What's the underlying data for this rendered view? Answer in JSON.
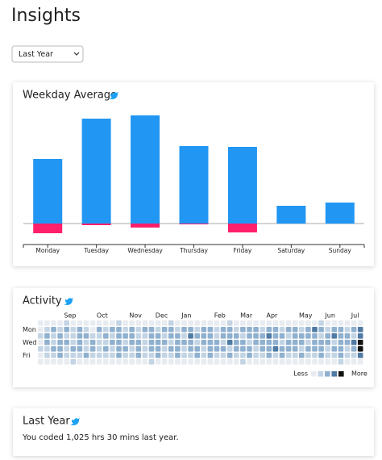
{
  "page_title": "Insights",
  "range_select": {
    "selected": "Last Year"
  },
  "chart_data": {
    "type": "bar",
    "title": "Weekday Average",
    "categories": [
      "Monday",
      "Tuesday",
      "Wednesday",
      "Thursday",
      "Friday",
      "Saturday",
      "Sunday"
    ],
    "series": [
      {
        "color": "#2196f3",
        "values": [
          80,
          130,
          134,
          96,
          95,
          22,
          26
        ]
      },
      {
        "color": "#ff1f6b",
        "values": [
          -12,
          -2,
          -5,
          -1,
          -11,
          0,
          0
        ]
      }
    ]
  },
  "activity": {
    "title": "Activity",
    "months": [
      {
        "label": "Sep",
        "week": 4
      },
      {
        "label": "Oct",
        "week": 9
      },
      {
        "label": "Nov",
        "week": 14
      },
      {
        "label": "Dec",
        "week": 18
      },
      {
        "label": "Jan",
        "week": 22
      },
      {
        "label": "Feb",
        "week": 27
      },
      {
        "label": "Mar",
        "week": 31
      },
      {
        "label": "Apr",
        "week": 35
      },
      {
        "label": "May",
        "week": 40
      },
      {
        "label": "Jun",
        "week": 44
      },
      {
        "label": "Jul",
        "week": 48
      }
    ],
    "day_labels": [
      {
        "label": "Mon",
        "row": 1
      },
      {
        "label": "Wed",
        "row": 3
      },
      {
        "label": "Fri",
        "row": 5
      }
    ],
    "level_colors": [
      "#e8ecf1",
      "#c3d4e4",
      "#8fb0cf",
      "#4f7aa3",
      "#111111"
    ],
    "legend_less": "Less",
    "legend_more": "More",
    "rows": [
      [
        0,
        0,
        0,
        0,
        1,
        0,
        0,
        0,
        0,
        0,
        0,
        0,
        1,
        0,
        0,
        0,
        0,
        0,
        0,
        0,
        1,
        0,
        0,
        0,
        0,
        0,
        0,
        0,
        0,
        1,
        0,
        0,
        0,
        0,
        0,
        0,
        0,
        0,
        0,
        0,
        0,
        0,
        0,
        1,
        0,
        0,
        0,
        0,
        0,
        0
      ],
      [
        0,
        1,
        2,
        1,
        2,
        1,
        2,
        1,
        0,
        2,
        1,
        2,
        2,
        1,
        2,
        1,
        2,
        2,
        1,
        2,
        2,
        1,
        2,
        2,
        1,
        2,
        2,
        1,
        2,
        2,
        1,
        2,
        2,
        2,
        1,
        2,
        2,
        1,
        2,
        2,
        1,
        2,
        3,
        2,
        1,
        2,
        2,
        1,
        2,
        3
      ],
      [
        1,
        2,
        1,
        2,
        1,
        1,
        2,
        2,
        1,
        1,
        2,
        1,
        2,
        2,
        2,
        1,
        1,
        2,
        2,
        1,
        2,
        2,
        1,
        3,
        2,
        2,
        2,
        1,
        2,
        2,
        2,
        1,
        2,
        2,
        2,
        3,
        2,
        2,
        1,
        2,
        2,
        2,
        2,
        1,
        2,
        3,
        2,
        2,
        1,
        3
      ],
      [
        0,
        2,
        1,
        2,
        2,
        1,
        2,
        1,
        2,
        1,
        1,
        2,
        2,
        1,
        2,
        2,
        1,
        2,
        2,
        2,
        1,
        2,
        2,
        2,
        1,
        2,
        2,
        2,
        1,
        3,
        2,
        2,
        1,
        2,
        2,
        2,
        2,
        1,
        2,
        2,
        2,
        1,
        2,
        2,
        2,
        1,
        2,
        2,
        3,
        4
      ],
      [
        1,
        1,
        2,
        2,
        1,
        2,
        2,
        1,
        2,
        1,
        2,
        1,
        2,
        2,
        1,
        2,
        1,
        2,
        2,
        1,
        2,
        2,
        1,
        2,
        2,
        1,
        2,
        2,
        2,
        1,
        2,
        2,
        2,
        1,
        2,
        2,
        3,
        2,
        2,
        2,
        1,
        2,
        2,
        2,
        1,
        2,
        2,
        1,
        2,
        4
      ],
      [
        0,
        1,
        1,
        2,
        1,
        1,
        1,
        2,
        1,
        1,
        1,
        1,
        2,
        1,
        1,
        2,
        1,
        1,
        2,
        1,
        1,
        2,
        1,
        1,
        2,
        1,
        2,
        1,
        1,
        2,
        1,
        1,
        2,
        1,
        1,
        2,
        1,
        2,
        1,
        1,
        2,
        1,
        1,
        2,
        1,
        1,
        2,
        1,
        1,
        3
      ],
      [
        0,
        0,
        0,
        0,
        0,
        1,
        0,
        0,
        0,
        0,
        0,
        0,
        0,
        0,
        0,
        0,
        0,
        1,
        0,
        0,
        0,
        0,
        0,
        0,
        0,
        0,
        0,
        0,
        0,
        0,
        0,
        1,
        0,
        0,
        0,
        0,
        0,
        0,
        0,
        0,
        0,
        0,
        0,
        0,
        0,
        0,
        1,
        0,
        0,
        0
      ]
    ]
  },
  "last_year": {
    "title": "Last Year",
    "text": "You coded 1,025 hrs 30 mins last year."
  }
}
